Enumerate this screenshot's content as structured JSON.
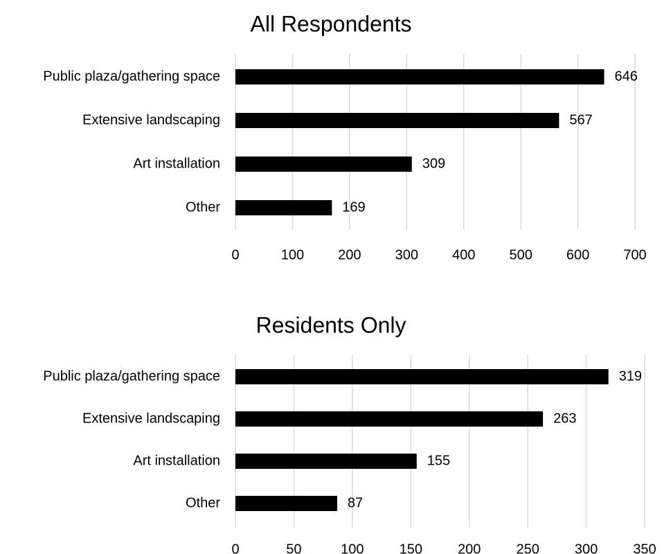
{
  "chart_data": [
    {
      "type": "bar",
      "orientation": "horizontal",
      "title": "All Respondents",
      "categories": [
        "Public plaza/gathering space",
        "Extensive landscaping",
        "Art installation",
        "Other"
      ],
      "values": [
        646,
        567,
        309,
        169
      ],
      "xlim": [
        0,
        700
      ],
      "ticks": [
        0,
        100,
        200,
        300,
        400,
        500,
        600,
        700
      ],
      "grid": true,
      "bar_color": "#000000",
      "grid_color": "#d9d9d9"
    },
    {
      "type": "bar",
      "orientation": "horizontal",
      "title": "Residents Only",
      "categories": [
        "Public plaza/gathering space",
        "Extensive landscaping",
        "Art installation",
        "Other"
      ],
      "values": [
        319,
        263,
        155,
        87
      ],
      "xlim": [
        0,
        350
      ],
      "ticks": [
        0,
        50,
        100,
        150,
        200,
        250,
        300,
        350
      ],
      "grid": true,
      "bar_color": "#000000",
      "grid_color": "#d9d9d9"
    }
  ]
}
